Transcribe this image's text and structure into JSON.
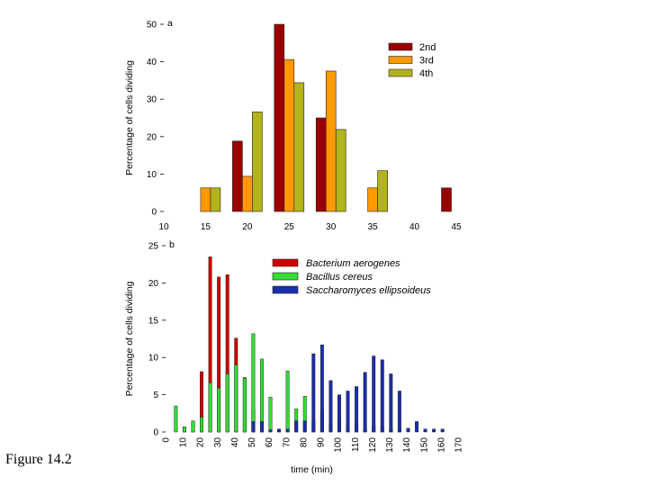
{
  "caption": "Figure 14.2",
  "chart_data": [
    {
      "type": "bar",
      "panel_label": "a",
      "ylabel": "Percentage of cells dividing",
      "xlabel": "",
      "xlim": [
        10,
        45
      ],
      "ylim": [
        0,
        50
      ],
      "x_ticks": [
        "10",
        "15",
        "20",
        "25",
        "30",
        "35",
        "40",
        "45"
      ],
      "y_ticks": [
        "0",
        "10",
        "20",
        "30",
        "40",
        "50"
      ],
      "legend_position": "top-right",
      "x": [
        15,
        20,
        25,
        30,
        35,
        40,
        45
      ],
      "series": [
        {
          "name": "2nd",
          "color": "#990000",
          "values": [
            0,
            18.8,
            50,
            25,
            0,
            0,
            6.3
          ]
        },
        {
          "name": "3rd",
          "color": "#ff9900",
          "values": [
            6.3,
            9.4,
            40.6,
            37.5,
            6.3,
            0,
            0
          ]
        },
        {
          "name": "4th",
          "color": "#b3b31a",
          "values": [
            6.3,
            26.6,
            34.4,
            21.9,
            10.9,
            0,
            0
          ]
        }
      ]
    },
    {
      "type": "bar",
      "panel_label": "b",
      "ylabel": "Percentage of cells dividing",
      "xlabel": "time (min)",
      "xlim": [
        0,
        170
      ],
      "ylim": [
        0,
        25
      ],
      "x_ticks": [
        "0",
        "10",
        "20",
        "30",
        "40",
        "50",
        "60",
        "70",
        "80",
        "90",
        "100",
        "110",
        "120",
        "130",
        "140",
        "150",
        "160",
        "170"
      ],
      "y_ticks": [
        "0",
        "5",
        "10",
        "15",
        "20",
        "25"
      ],
      "legend_position": "top-right",
      "series": [
        {
          "name": "Bacterium aerogenes",
          "color": "#cc0000",
          "points": [
            [
              10,
              0.6
            ],
            [
              15,
              1.2
            ],
            [
              20,
              8.1
            ],
            [
              25,
              23.5
            ],
            [
              30,
              20.8
            ],
            [
              35,
              21.1
            ],
            [
              40,
              12.6
            ],
            [
              45,
              7.3
            ],
            [
              50,
              3.0
            ],
            [
              55,
              1.4
            ]
          ]
        },
        {
          "name": "Bacillus cereus",
          "color": "#33dd33",
          "points": [
            [
              5,
              3.5
            ],
            [
              10,
              0.7
            ],
            [
              15,
              1.5
            ],
            [
              20,
              2.0
            ],
            [
              25,
              6.6
            ],
            [
              30,
              5.9
            ],
            [
              35,
              7.8
            ],
            [
              40,
              9.0
            ],
            [
              45,
              7.2
            ],
            [
              50,
              13.2
            ],
            [
              55,
              9.8
            ],
            [
              60,
              4.7
            ],
            [
              65,
              0.4
            ],
            [
              70,
              8.2
            ],
            [
              75,
              3.1
            ],
            [
              80,
              4.8
            ],
            [
              85,
              1.5
            ],
            [
              90,
              2.7
            ],
            [
              95,
              1.2
            ],
            [
              100,
              1.5
            ],
            [
              105,
              0.8
            ],
            [
              110,
              1.2
            ],
            [
              115,
              0.4
            ],
            [
              120,
              0.8
            ],
            [
              125,
              0.8
            ],
            [
              130,
              0.4
            ],
            [
              135,
              0.4
            ]
          ]
        },
        {
          "name": "Saccharomyces ellipsoideus",
          "color": "#1a2faa",
          "points": [
            [
              50,
              1.4
            ],
            [
              55,
              1.4
            ],
            [
              60,
              0.3
            ],
            [
              65,
              0.4
            ],
            [
              70,
              0.4
            ],
            [
              75,
              1.5
            ],
            [
              80,
              1.5
            ],
            [
              85,
              10.5
            ],
            [
              90,
              11.7
            ],
            [
              95,
              6.9
            ],
            [
              100,
              5.0
            ],
            [
              105,
              5.5
            ],
            [
              110,
              6.1
            ],
            [
              115,
              8.0
            ],
            [
              120,
              10.2
            ],
            [
              125,
              9.7
            ],
            [
              130,
              7.8
            ],
            [
              135,
              5.5
            ],
            [
              140,
              0.5
            ],
            [
              145,
              1.4
            ],
            [
              150,
              0.4
            ],
            [
              155,
              0.4
            ],
            [
              160,
              0.4
            ]
          ]
        }
      ]
    }
  ]
}
